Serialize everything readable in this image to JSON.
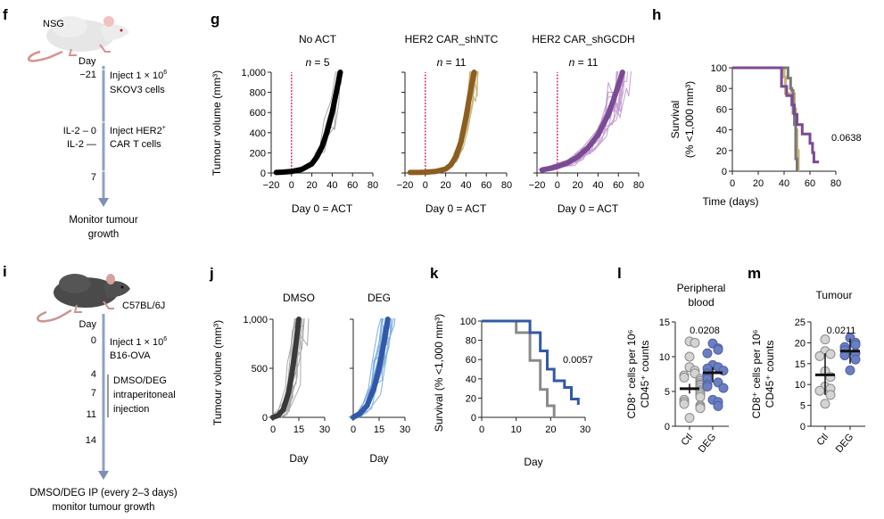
{
  "panels": {
    "f": {
      "letter": "f",
      "strain": "NSG",
      "day_label": "Day",
      "events": [
        {
          "day": "−21",
          "text1": "Inject 1 × 10",
          "sup1": "6",
          "text2": "SKOV3 cells"
        },
        {
          "day": "IL-2 – 0",
          "text1": "Inject HER2",
          "sup1": "+",
          "text2": "CAR T cells"
        },
        {
          "day": "IL-2 —",
          "text1": "",
          "sup1": "",
          "text2": ""
        },
        {
          "day": "7",
          "text1": "",
          "sup1": "",
          "text2": ""
        }
      ],
      "endpoint_line1": "Monitor tumour",
      "endpoint_line2": "growth"
    },
    "i": {
      "letter": "i",
      "strain": "C57BL/6J",
      "day_label": "Day",
      "days": [
        "0",
        "4",
        "7",
        "11",
        "14"
      ],
      "event1_line1": "Inject 1 × 10",
      "event1_sup": "6",
      "event1_line2": "B16-OVA",
      "event2_lines": [
        "DMSO/DEG",
        "intraperitoneal",
        "injection"
      ],
      "endpoint_line1": "DMSO/DEG IP (every 2–3 days)",
      "endpoint_line2": "monitor tumour growth"
    },
    "g": {
      "letter": "g"
    },
    "h": {
      "letter": "h"
    },
    "j": {
      "letter": "j"
    },
    "k": {
      "letter": "k"
    },
    "l": {
      "letter": "l"
    },
    "m": {
      "letter": "m"
    }
  },
  "colors": {
    "noact_mean": "#000000",
    "noact_ind": "#a8a8a8",
    "shntc_mean": "#8b5e1f",
    "shntc_ind": "#c7b57a",
    "shgcdh_mean": "#7b4a94",
    "shgcdh_ind": "#c39fd0",
    "dmso_mean": "#3a3a3a",
    "dmso_ind": "#aaaaaa",
    "deg_mean": "#3358a8",
    "deg_ind": "#7fb0e0",
    "act_line": "#e0306a",
    "ctl_dot": "#d4d4d4",
    "deg_dot": "#6b7fc0"
  },
  "chart_data": [
    {
      "id": "g",
      "type": "line",
      "ylabel": "Tumour volume (mm³)",
      "ylim": [
        0,
        1000
      ],
      "yticks": [
        "0",
        "200",
        "400",
        "600",
        "800",
        "1,000"
      ],
      "ytick_values": [
        0,
        200,
        400,
        600,
        800,
        1000
      ],
      "xlim": [
        -20,
        80
      ],
      "xticks": [
        "−20",
        "0",
        "20",
        "40",
        "60",
        "80"
      ],
      "xtick_values": [
        -20,
        0,
        20,
        40,
        60,
        80
      ],
      "xlabel": "Day 0 = ACT",
      "vline_x": 0,
      "subplots": [
        {
          "title": "No ACT",
          "n_label": "n = 5",
          "mean_color_key": "noact_mean",
          "ind_color_key": "noact_ind",
          "mean": {
            "x": [
              -15,
              -10,
              0,
              10,
              20,
              25,
              30,
              35,
              40,
              45,
              48
            ],
            "y": [
              5,
              8,
              15,
              35,
              90,
              160,
              260,
              410,
              600,
              850,
              1000
            ]
          },
          "individual_n": 5
        },
        {
          "title": "HER2 CAR_shNTC",
          "n_label": "n = 11",
          "mean_color_key": "shntc_mean",
          "ind_color_key": "shntc_ind",
          "mean": {
            "x": [
              -15,
              -5,
              0,
              10,
              20,
              25,
              30,
              35,
              40,
              45,
              48
            ],
            "y": [
              5,
              6,
              8,
              15,
              40,
              80,
              160,
              310,
              550,
              850,
              1000
            ]
          },
          "individual_n": 11
        },
        {
          "title": "HER2 CAR_shGCDH",
          "n_label": "n = 11",
          "mean_color_key": "shgcdh_mean",
          "ind_color_key": "shgcdh_ind",
          "mean": {
            "x": [
              -15,
              -5,
              0,
              10,
              20,
              30,
              40,
              50,
              55,
              60,
              64
            ],
            "y": [
              30,
              50,
              65,
              100,
              160,
              250,
              380,
              580,
              720,
              870,
              1000
            ]
          },
          "individual_n": 11
        }
      ]
    },
    {
      "id": "h",
      "type": "line",
      "subtype": "kaplan-meier",
      "ylabel_line1": "Survival",
      "ylabel_line2": "(% <1,000 mm³)",
      "xlabel": "Time (days)",
      "xlim": [
        0,
        80
      ],
      "ylim": [
        0,
        100
      ],
      "xticks": [
        "0",
        "20",
        "40",
        "60",
        "80"
      ],
      "xtick_values": [
        0,
        20,
        40,
        60,
        80
      ],
      "yticks": [
        "0",
        "20",
        "40",
        "60",
        "80",
        "100"
      ],
      "ytick_values": [
        0,
        20,
        40,
        60,
        80,
        100
      ],
      "annotation": "0.0638",
      "series": [
        {
          "name": "HER2 CAR_shNTC",
          "color_key": "shntc_ind",
          "steps": [
            [
              0,
              100
            ],
            [
              40,
              100
            ],
            [
              40,
              91
            ],
            [
              41,
              91
            ],
            [
              41,
              75
            ],
            [
              48,
              75
            ],
            [
              48,
              60
            ],
            [
              49,
              60
            ],
            [
              49,
              40
            ],
            [
              50,
              40
            ],
            [
              50,
              20
            ],
            [
              51,
              20
            ],
            [
              51,
              0
            ]
          ]
        },
        {
          "name": "No ACT",
          "color_key": "noact_ind_dark",
          "steps": [
            [
              0,
              100
            ],
            [
              43,
              100
            ],
            [
              43,
              90
            ],
            [
              45,
              90
            ],
            [
              45,
              80
            ],
            [
              46,
              80
            ],
            [
              46,
              78
            ],
            [
              47,
              78
            ],
            [
              47,
              56
            ],
            [
              48,
              56
            ],
            [
              48,
              45
            ],
            [
              49,
              45
            ],
            [
              49,
              12
            ],
            [
              50,
              12
            ],
            [
              50,
              0
            ]
          ]
        },
        {
          "name": "HER2 CAR_shGCDH",
          "color_key": "shgcdh_mean",
          "steps": [
            [
              0,
              100
            ],
            [
              38,
              100
            ],
            [
              38,
              82
            ],
            [
              42,
              82
            ],
            [
              42,
              73
            ],
            [
              46,
              73
            ],
            [
              46,
              64
            ],
            [
              48,
              64
            ],
            [
              48,
              55
            ],
            [
              50,
              55
            ],
            [
              50,
              45
            ],
            [
              54,
              45
            ],
            [
              54,
              36
            ],
            [
              60,
              36
            ],
            [
              60,
              27
            ],
            [
              62,
              27
            ],
            [
              62,
              18
            ],
            [
              63,
              18
            ],
            [
              63,
              9
            ],
            [
              67,
              9
            ]
          ]
        }
      ]
    },
    {
      "id": "j",
      "type": "line",
      "ylabel": "Tumour volume (mm³)",
      "ylim": [
        0,
        1000
      ],
      "yticks": [
        "0",
        "500",
        "1,000"
      ],
      "ytick_values": [
        0,
        500,
        1000
      ],
      "xlim": [
        0,
        30
      ],
      "xticks": [
        "0",
        "15",
        "30"
      ],
      "xtick_values": [
        0,
        15,
        30
      ],
      "xlabel": "Day",
      "subplots": [
        {
          "title": "DMSO",
          "mean_color_key": "dmso_mean",
          "ind_color_key": "dmso_ind",
          "mean": {
            "x": [
              0,
              3,
              6,
              9,
              11,
              13,
              15
            ],
            "y": [
              0,
              20,
              80,
              250,
              450,
              700,
              1000
            ]
          },
          "individual_n": 14
        },
        {
          "title": "DEG",
          "mean_color_key": "deg_mean",
          "ind_color_key": "deg_ind",
          "mean": {
            "x": [
              0,
              4,
              8,
              12,
              15,
              18,
              20
            ],
            "y": [
              0,
              40,
              120,
              300,
              500,
              780,
              1000
            ]
          },
          "individual_n": 14
        }
      ]
    },
    {
      "id": "k",
      "type": "line",
      "subtype": "kaplan-meier",
      "ylabel": "Survival (% <1,000 mm³)",
      "xlabel": "Day",
      "xlim": [
        0,
        30
      ],
      "ylim": [
        0,
        100
      ],
      "xticks": [
        "0",
        "10",
        "20",
        "30"
      ],
      "xtick_values": [
        0,
        10,
        20,
        30
      ],
      "yticks": [
        "0",
        "20",
        "40",
        "60",
        "80",
        "100"
      ],
      "ytick_values": [
        0,
        20,
        40,
        60,
        80,
        100
      ],
      "annotation": "0.0057",
      "series": [
        {
          "name": "DMSO",
          "color_key": "km_gray",
          "steps": [
            [
              0,
              100
            ],
            [
              10,
              100
            ],
            [
              10,
              88
            ],
            [
              14,
              88
            ],
            [
              14,
              59
            ],
            [
              17,
              59
            ],
            [
              17,
              29
            ],
            [
              19,
              29
            ],
            [
              19,
              12
            ],
            [
              21,
              12
            ],
            [
              21,
              0
            ]
          ]
        },
        {
          "name": "DEG",
          "color_key": "deg_mean",
          "steps": [
            [
              0,
              100
            ],
            [
              14,
              100
            ],
            [
              14,
              88
            ],
            [
              17,
              88
            ],
            [
              17,
              69
            ],
            [
              19,
              69
            ],
            [
              19,
              50
            ],
            [
              21,
              50
            ],
            [
              21,
              38
            ],
            [
              24,
              38
            ],
            [
              24,
              31
            ],
            [
              26,
              31
            ],
            [
              26,
              19
            ],
            [
              28,
              19
            ],
            [
              28,
              13
            ]
          ]
        }
      ]
    },
    {
      "id": "l",
      "type": "scatter",
      "subtype": "dot-plot",
      "title_line1": "Peripheral",
      "title_line2": "blood",
      "ylabel_line1": "CD8⁺ cells per 10⁶",
      "ylabel_line2": "CD45⁺ counts",
      "ylim": [
        0,
        15
      ],
      "yticks": [
        "0",
        "5",
        "10",
        "15"
      ],
      "ytick_values": [
        0,
        5,
        10,
        15
      ],
      "categories": [
        "Ctl",
        "DEG"
      ],
      "annotation": "0.0208",
      "groups": [
        {
          "name": "Ctl",
          "color_key": "ctl_dot",
          "mean": 5.4,
          "sem_low": 4.7,
          "sem_high": 6.1,
          "values": [
            12.2,
            12.0,
            10.0,
            8.5,
            8.0,
            7.6,
            7.3,
            7.0,
            6.8,
            6.5,
            6.2,
            6.0,
            5.8,
            5.5,
            5.2,
            5.0,
            4.8,
            4.5,
            4.2,
            3.8,
            3.5,
            3.2,
            3.0,
            2.8,
            2.6,
            1.2
          ]
        },
        {
          "name": "DEG",
          "color_key": "deg_dot",
          "mean": 7.7,
          "sem_low": 6.3,
          "sem_high": 8.5,
          "values": [
            11.9,
            11.2,
            11.0,
            10.5,
            8.8,
            8.5,
            8.3,
            8.0,
            7.6,
            7.2,
            6.8,
            6.3,
            6.0,
            5.7,
            5.5,
            3.8,
            3.5,
            2.9
          ]
        }
      ]
    },
    {
      "id": "m",
      "type": "scatter",
      "subtype": "dot-plot",
      "title": "Tumour",
      "ylabel_line1": "CD8⁺ cells per 10⁶",
      "ylabel_line2": "CD45⁺ counts",
      "ylim": [
        0,
        25
      ],
      "yticks": [
        "0",
        "5",
        "10",
        "15",
        "20",
        "25"
      ],
      "ytick_values": [
        0,
        5,
        10,
        15,
        20,
        25
      ],
      "categories": [
        "Ctl",
        "DEG"
      ],
      "annotation": "0.0211",
      "groups": [
        {
          "name": "Ctl",
          "color_key": "ctl_dot",
          "mean": 12.3,
          "sem_low": 7.5,
          "sem_high": 17.5,
          "values": [
            20.8,
            18.0,
            17.3,
            16.8,
            13.2,
            11.8,
            9.5,
            9.0,
            8.5,
            7.5,
            5.4
          ]
        },
        {
          "name": "DEG",
          "color_key": "deg_dot",
          "mean": 18.0,
          "sem_low": 15.0,
          "sem_high": 21.0,
          "values": [
            21.2,
            20.0,
            19.5,
            19.0,
            18.2,
            17.5,
            17.0,
            16.0,
            13.4
          ]
        }
      ]
    }
  ]
}
